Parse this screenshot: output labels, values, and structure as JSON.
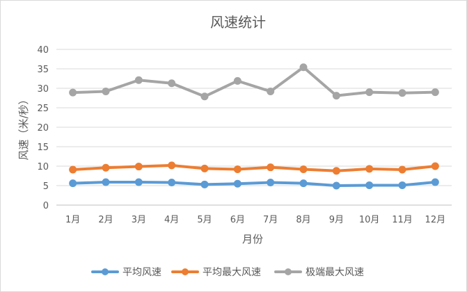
{
  "chart_data": {
    "type": "line",
    "title": "风速统计",
    "xlabel": "月份",
    "ylabel": "风速（米/秒）",
    "categories": [
      "1月",
      "2月",
      "3月",
      "4月",
      "5月",
      "6月",
      "7月",
      "8月",
      "9月",
      "10月",
      "11月",
      "12月"
    ],
    "ylim": [
      0,
      40
    ],
    "yticks": [
      0,
      5,
      10,
      15,
      20,
      25,
      30,
      35,
      40
    ],
    "grid": true,
    "legend_position": "bottom",
    "series": [
      {
        "name": "平均风速",
        "color": "#5b9bd5",
        "values": [
          5.6,
          5.9,
          5.9,
          5.8,
          5.3,
          5.5,
          5.8,
          5.6,
          5.0,
          5.1,
          5.1,
          5.9
        ]
      },
      {
        "name": "平均最大风速",
        "color": "#ed7d31",
        "values": [
          9.1,
          9.6,
          9.9,
          10.2,
          9.4,
          9.2,
          9.7,
          9.2,
          8.8,
          9.3,
          9.1,
          10.0
        ]
      },
      {
        "name": "极端最大风速",
        "color": "#a5a5a5",
        "values": [
          28.9,
          29.2,
          32.1,
          31.3,
          27.9,
          31.9,
          29.2,
          35.4,
          28.1,
          29.0,
          28.8,
          29.0
        ]
      }
    ]
  }
}
